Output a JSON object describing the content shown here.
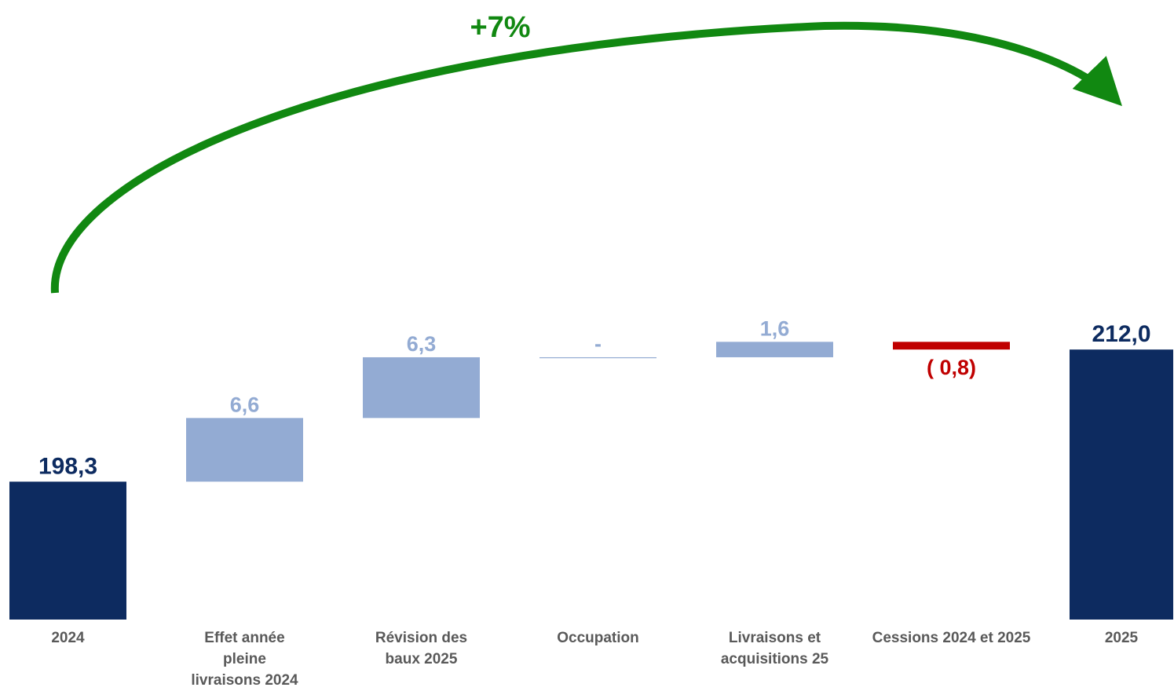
{
  "chart_data": {
    "type": "bar",
    "subtype": "waterfall",
    "title": "",
    "xlabel": "",
    "ylabel": "",
    "categories": [
      "2024",
      "Effet année pleine livraisons 2024",
      "Révision des baux 2025",
      "Occupation",
      "Livraisons et acquisitions 25",
      "Cessions 2024 et 2025",
      "2025"
    ],
    "category_lines": [
      [
        "2024"
      ],
      [
        "Effet année",
        "pleine",
        "livraisons 2024"
      ],
      [
        "Révision des",
        "baux 2025"
      ],
      [
        "Occupation"
      ],
      [
        "Livraisons et",
        "acquisitions 25"
      ],
      [
        "Cessions 2024 et 2025"
      ],
      [
        "2025"
      ]
    ],
    "values": [
      198.3,
      6.6,
      6.3,
      0,
      1.6,
      -0.8,
      212.0
    ],
    "kinds": [
      "total",
      "delta",
      "delta",
      "delta",
      "delta",
      "delta",
      "total"
    ],
    "data_labels": [
      "198,3",
      "6,6",
      "6,3",
      "-",
      "1,6",
      "( 0,8)",
      "212,0"
    ],
    "annotation": "+7%",
    "axis_visible": false,
    "grid": false,
    "legend": "none",
    "colors": {
      "total": "#0D2B60",
      "increase": "#93ABD3",
      "decrease": "#C00000",
      "arrow": "#118811",
      "category_text": "#595959"
    }
  }
}
